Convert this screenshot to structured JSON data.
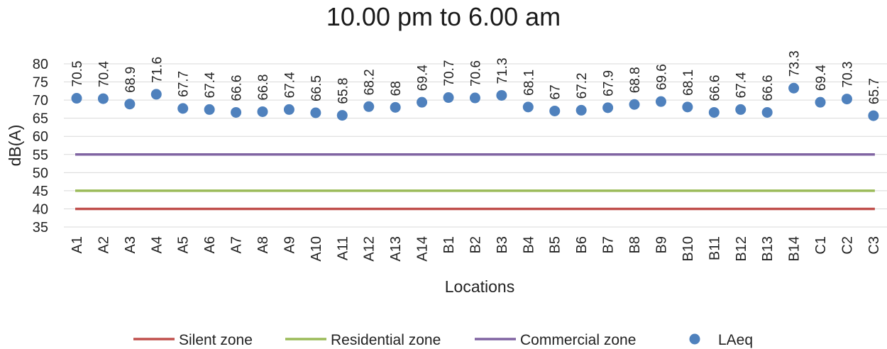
{
  "chart_data": {
    "type": "scatter",
    "title": "10.00 pm to 6.00 am",
    "xlabel": "Locations",
    "ylabel": "dB(A)",
    "ylim": [
      35,
      80
    ],
    "yticks": [
      35,
      40,
      45,
      50,
      55,
      60,
      65,
      70,
      75,
      80
    ],
    "grid": true,
    "legend_position": "bottom",
    "categories": [
      "A1",
      "A2",
      "A3",
      "A4",
      "A5",
      "A6",
      "A7",
      "A8",
      "A9",
      "A10",
      "A11",
      "A12",
      "A13",
      "A14",
      "B1",
      "B2",
      "B3",
      "B4",
      "B5",
      "B6",
      "B7",
      "B8",
      "B9",
      "B10",
      "B11",
      "B12",
      "B13",
      "B14",
      "C1",
      "C2",
      "C3"
    ],
    "series": [
      {
        "name": "Silent zone",
        "type": "line",
        "color": "#c0504d",
        "value": 40
      },
      {
        "name": "Residential zone",
        "type": "line",
        "color": "#9bbb59",
        "value": 45
      },
      {
        "name": "Commercial zone",
        "type": "line",
        "color": "#8064a2",
        "value": 55
      },
      {
        "name": "LAeq",
        "type": "scatter",
        "color": "#4f81bd",
        "values": [
          70.5,
          70.4,
          68.9,
          71.6,
          67.7,
          67.4,
          66.6,
          66.8,
          67.4,
          66.5,
          65.8,
          68.2,
          68,
          69.4,
          70.7,
          70.6,
          71.3,
          68.1,
          67,
          67.2,
          67.9,
          68.8,
          69.6,
          68.1,
          66.6,
          67.4,
          66.6,
          73.3,
          69.4,
          70.3,
          65.7
        ],
        "labels": [
          "70.5",
          "70.4",
          "68.9",
          "71.6",
          "67.7",
          "67.4",
          "66.6",
          "66.8",
          "67.4",
          "66.5",
          "65.8",
          "68.2",
          "68",
          "69.4",
          "70.7",
          "70.6",
          "71.3",
          "68.1",
          "67",
          "67.2",
          "67.9",
          "68.8",
          "69.6",
          "68.1",
          "66.6",
          "67.4",
          "66.6",
          "73.3",
          "69.4",
          "70.3",
          "65.7"
        ]
      }
    ]
  }
}
